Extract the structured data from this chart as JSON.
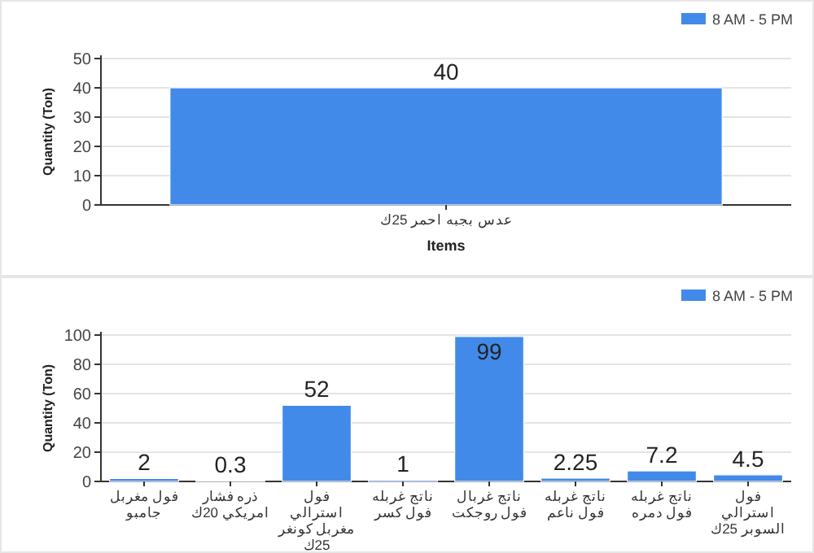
{
  "chart_data": [
    {
      "type": "bar",
      "categories": [
        "عدس بجبه احمر 25ك"
      ],
      "series": [
        {
          "name": "8 AM - 5 PM",
          "color": "#418ae9",
          "values": [
            40
          ]
        }
      ],
      "xlabel": "Items",
      "ylabel": "Quantity (Ton)",
      "ylim": [
        0,
        50
      ],
      "yticks": [
        0,
        10,
        20,
        30,
        40,
        50
      ],
      "grid": "y",
      "legend": "top right",
      "data_labels": true
    },
    {
      "type": "bar",
      "categories": [
        "فول مغربل جامبو",
        "ذره فشار امريكي 20ك",
        "فول استرالي مغربل كونغر 25ك",
        "ناتج غربله فول كسر",
        "ناتج غربال فول روجكت",
        "ناتج غربله فول ناعم",
        "ناتج غربله فول دمره",
        "فول استرالي السوبر 25ك"
      ],
      "series": [
        {
          "name": "8 AM - 5 PM",
          "color": "#418ae9",
          "values": [
            2,
            0.3,
            52,
            1,
            99,
            2.25,
            7.2,
            4.5
          ]
        }
      ],
      "ylabel": "Quantity (Ton)",
      "ylim": [
        0,
        100
      ],
      "yticks": [
        0,
        20,
        40,
        60,
        80,
        100
      ],
      "grid": "y",
      "legend": "top right",
      "data_labels": true
    }
  ]
}
